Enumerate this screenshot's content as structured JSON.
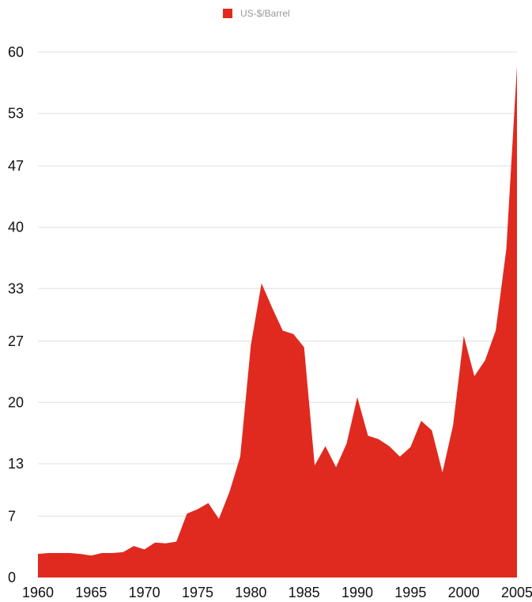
{
  "chart_data": {
    "type": "area",
    "title": "",
    "xlabel": "",
    "ylabel": "",
    "legend": {
      "placement": "top-center"
    },
    "grid": true,
    "xlim": [
      1960,
      2005
    ],
    "ylim": [
      0,
      60
    ],
    "x_ticks": [
      "1960",
      "1965",
      "1970",
      "1975",
      "1980",
      "1985",
      "1990",
      "1995",
      "2000",
      "2005"
    ],
    "y_ticks": [
      "0",
      "7",
      "13",
      "20",
      "27",
      "33",
      "40",
      "47",
      "53",
      "60"
    ],
    "series": [
      {
        "name": "US-$/Barrel",
        "color": "#e02a1f",
        "x": [
          1960,
          1961,
          1962,
          1963,
          1964,
          1965,
          1966,
          1967,
          1968,
          1969,
          1970,
          1971,
          1972,
          1973,
          1974,
          1975,
          1976,
          1977,
          1978,
          1979,
          1980,
          1981,
          1982,
          1983,
          1984,
          1985,
          1986,
          1987,
          1988,
          1989,
          1990,
          1991,
          1992,
          1993,
          1994,
          1995,
          1996,
          1997,
          1998,
          1999,
          2000,
          2001,
          2002,
          2003,
          2004,
          2005
        ],
        "values": [
          2.7,
          2.8,
          2.8,
          2.8,
          2.7,
          2.5,
          2.8,
          2.8,
          2.9,
          3.6,
          3.2,
          4.0,
          3.9,
          4.1,
          7.3,
          7.8,
          8.5,
          6.7,
          9.8,
          13.8,
          26.5,
          33.6,
          30.8,
          28.2,
          27.8,
          26.3,
          12.8,
          15.0,
          12.6,
          15.3,
          20.6,
          16.2,
          15.8,
          15.0,
          13.8,
          14.9,
          17.9,
          16.8,
          12.0,
          17.4,
          27.6,
          23.0,
          24.8,
          28.2,
          37.5,
          58.4
        ]
      }
    ]
  }
}
